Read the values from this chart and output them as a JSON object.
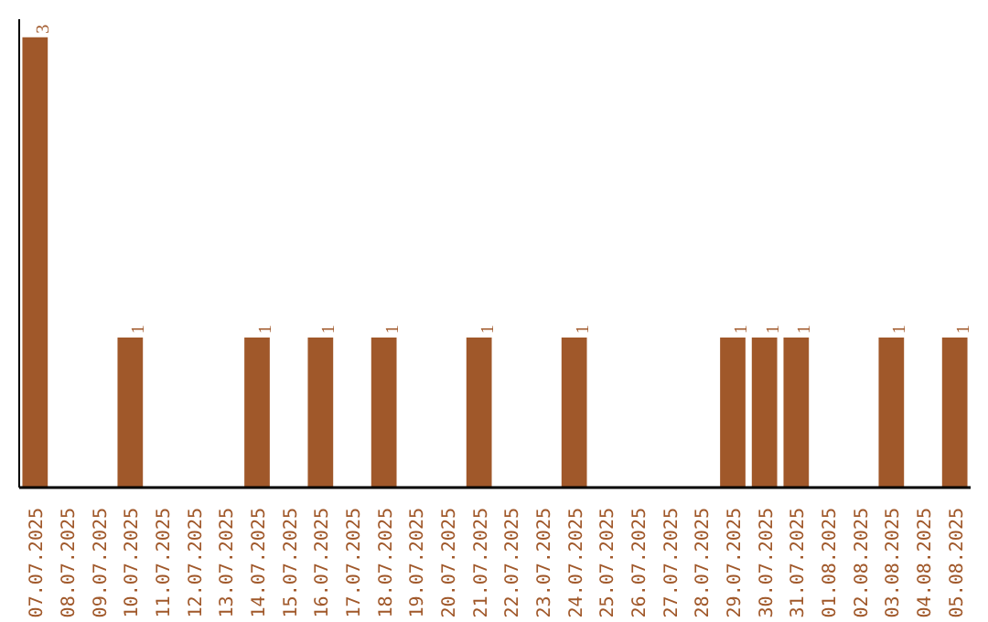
{
  "chart_data": {
    "type": "bar",
    "color": "#a0582a",
    "categories": [
      "07.07.2025",
      "08.07.2025",
      "09.07.2025",
      "10.07.2025",
      "11.07.2025",
      "12.07.2025",
      "13.07.2025",
      "14.07.2025",
      "15.07.2025",
      "16.07.2025",
      "17.07.2025",
      "18.07.2025",
      "19.07.2025",
      "20.07.2025",
      "21.07.2025",
      "22.07.2025",
      "23.07.2025",
      "24.07.2025",
      "25.07.2025",
      "26.07.2025",
      "27.07.2025",
      "28.07.2025",
      "29.07.2025",
      "30.07.2025",
      "31.07.2025",
      "01.08.2025",
      "02.08.2025",
      "03.08.2025",
      "04.08.2025",
      "05.08.2025"
    ],
    "values": [
      3,
      0,
      0,
      1,
      0,
      0,
      0,
      1,
      0,
      1,
      0,
      1,
      0,
      0,
      1,
      0,
      0,
      1,
      0,
      0,
      0,
      0,
      1,
      1,
      1,
      0,
      0,
      1,
      0,
      1
    ],
    "value_labels": [
      "3",
      null,
      null,
      "1",
      null,
      null,
      null,
      "1",
      null,
      "1",
      null,
      "1",
      null,
      null,
      "1",
      null,
      null,
      "1",
      null,
      null,
      null,
      null,
      "1",
      "1",
      "1",
      null,
      null,
      "1",
      null,
      "1"
    ],
    "data_labels": false
  }
}
